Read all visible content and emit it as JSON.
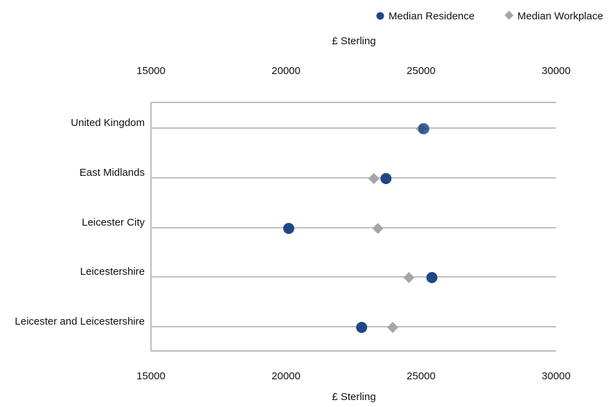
{
  "chart_data": {
    "type": "scatter",
    "orientation": "horizontal",
    "categories": [
      "United Kingdom",
      "East Midlands",
      "Leicester City",
      "Leicestershire",
      "Leicester and Leicestershire"
    ],
    "series": [
      {
        "name": "Median Residence",
        "marker": "circle",
        "color": "#1F4788",
        "values": [
          25100,
          23700,
          20100,
          25400,
          22800
        ]
      },
      {
        "name": "Median Workplace",
        "marker": "diamond",
        "color": "#A6A6A6",
        "values": [
          25000,
          23250,
          23400,
          24550,
          23950
        ]
      }
    ],
    "x_axis": {
      "label_top": "£ Sterling",
      "label_bottom": "£ Sterling",
      "ticks": [
        15000,
        20000,
        25000,
        30000
      ],
      "xlim": [
        15000,
        30000
      ]
    },
    "grid": "horizontal lines per category",
    "legend_position": "top-right",
    "colors": {
      "gridline": "#C0C0C0",
      "frame": "#A6A6A6"
    }
  }
}
